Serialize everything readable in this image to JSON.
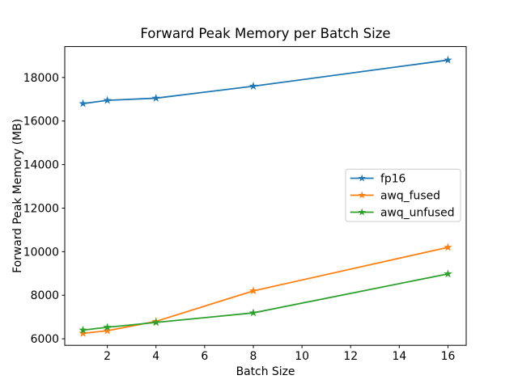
{
  "chart_data": {
    "type": "line",
    "title": "Forward Peak Memory per Batch Size",
    "xlabel": "Batch Size",
    "ylabel": "Forward Peak Memory (MB)",
    "x": [
      1,
      2,
      4,
      8,
      16
    ],
    "series": [
      {
        "name": "fp16",
        "color": "#1f77b4",
        "marker": "star",
        "values": [
          16800,
          16950,
          17050,
          17600,
          18800
        ]
      },
      {
        "name": "awq_fused",
        "color": "#ff7f0e",
        "marker": "star",
        "values": [
          6250,
          6370,
          6800,
          8200,
          10200
        ]
      },
      {
        "name": "awq_unfused",
        "color": "#2ca02c",
        "marker": "star",
        "values": [
          6400,
          6530,
          6750,
          7190,
          8980
        ]
      }
    ],
    "xticks": [
      2,
      4,
      6,
      8,
      10,
      12,
      14,
      16
    ],
    "yticks": [
      6000,
      8000,
      10000,
      12000,
      14000,
      16000,
      18000
    ],
    "xlim": [
      0.25,
      16.75
    ],
    "ylim": [
      5700,
      19420
    ],
    "grid": false,
    "legend": {
      "position": "center-right",
      "frame_color": "#cccccc",
      "background": "#ffffff"
    },
    "axes_color": "#000000",
    "background": "#ffffff"
  }
}
